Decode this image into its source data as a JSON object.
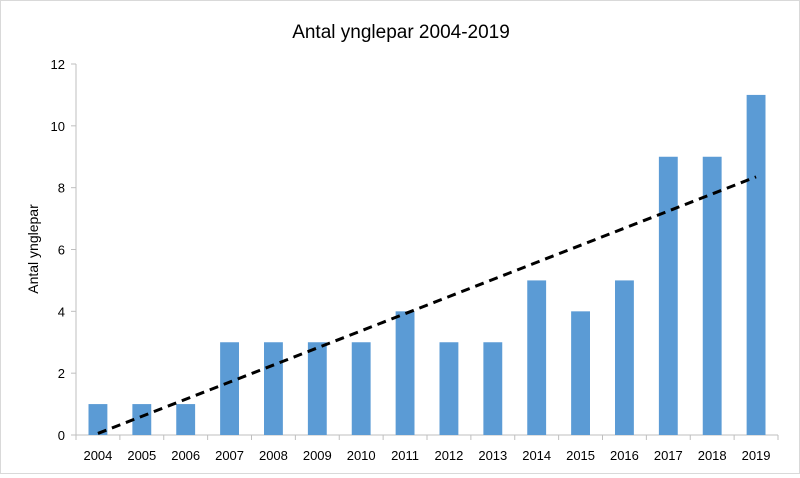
{
  "chart_data": {
    "type": "bar",
    "title": "Antal ynglepar 2004-2019",
    "xlabel": "",
    "ylabel": "Antal ynglepar",
    "categories": [
      "2004",
      "2005",
      "2006",
      "2007",
      "2008",
      "2009",
      "2010",
      "2011",
      "2012",
      "2013",
      "2014",
      "2015",
      "2016",
      "2017",
      "2018",
      "2019"
    ],
    "values": [
      1,
      1,
      1,
      3,
      3,
      3,
      3,
      4,
      3,
      3,
      5,
      4,
      5,
      9,
      9,
      11
    ],
    "ylim": [
      0,
      12
    ],
    "yticks": [
      "0",
      "2",
      "4",
      "6",
      "8",
      "10",
      "12"
    ],
    "grid": false,
    "legend": "none",
    "bar_color": "#5b9bd5",
    "trendline": {
      "type": "linear",
      "style": "dashed",
      "color": "#000000",
      "start_value": 0.05,
      "end_value": 8.35
    }
  }
}
